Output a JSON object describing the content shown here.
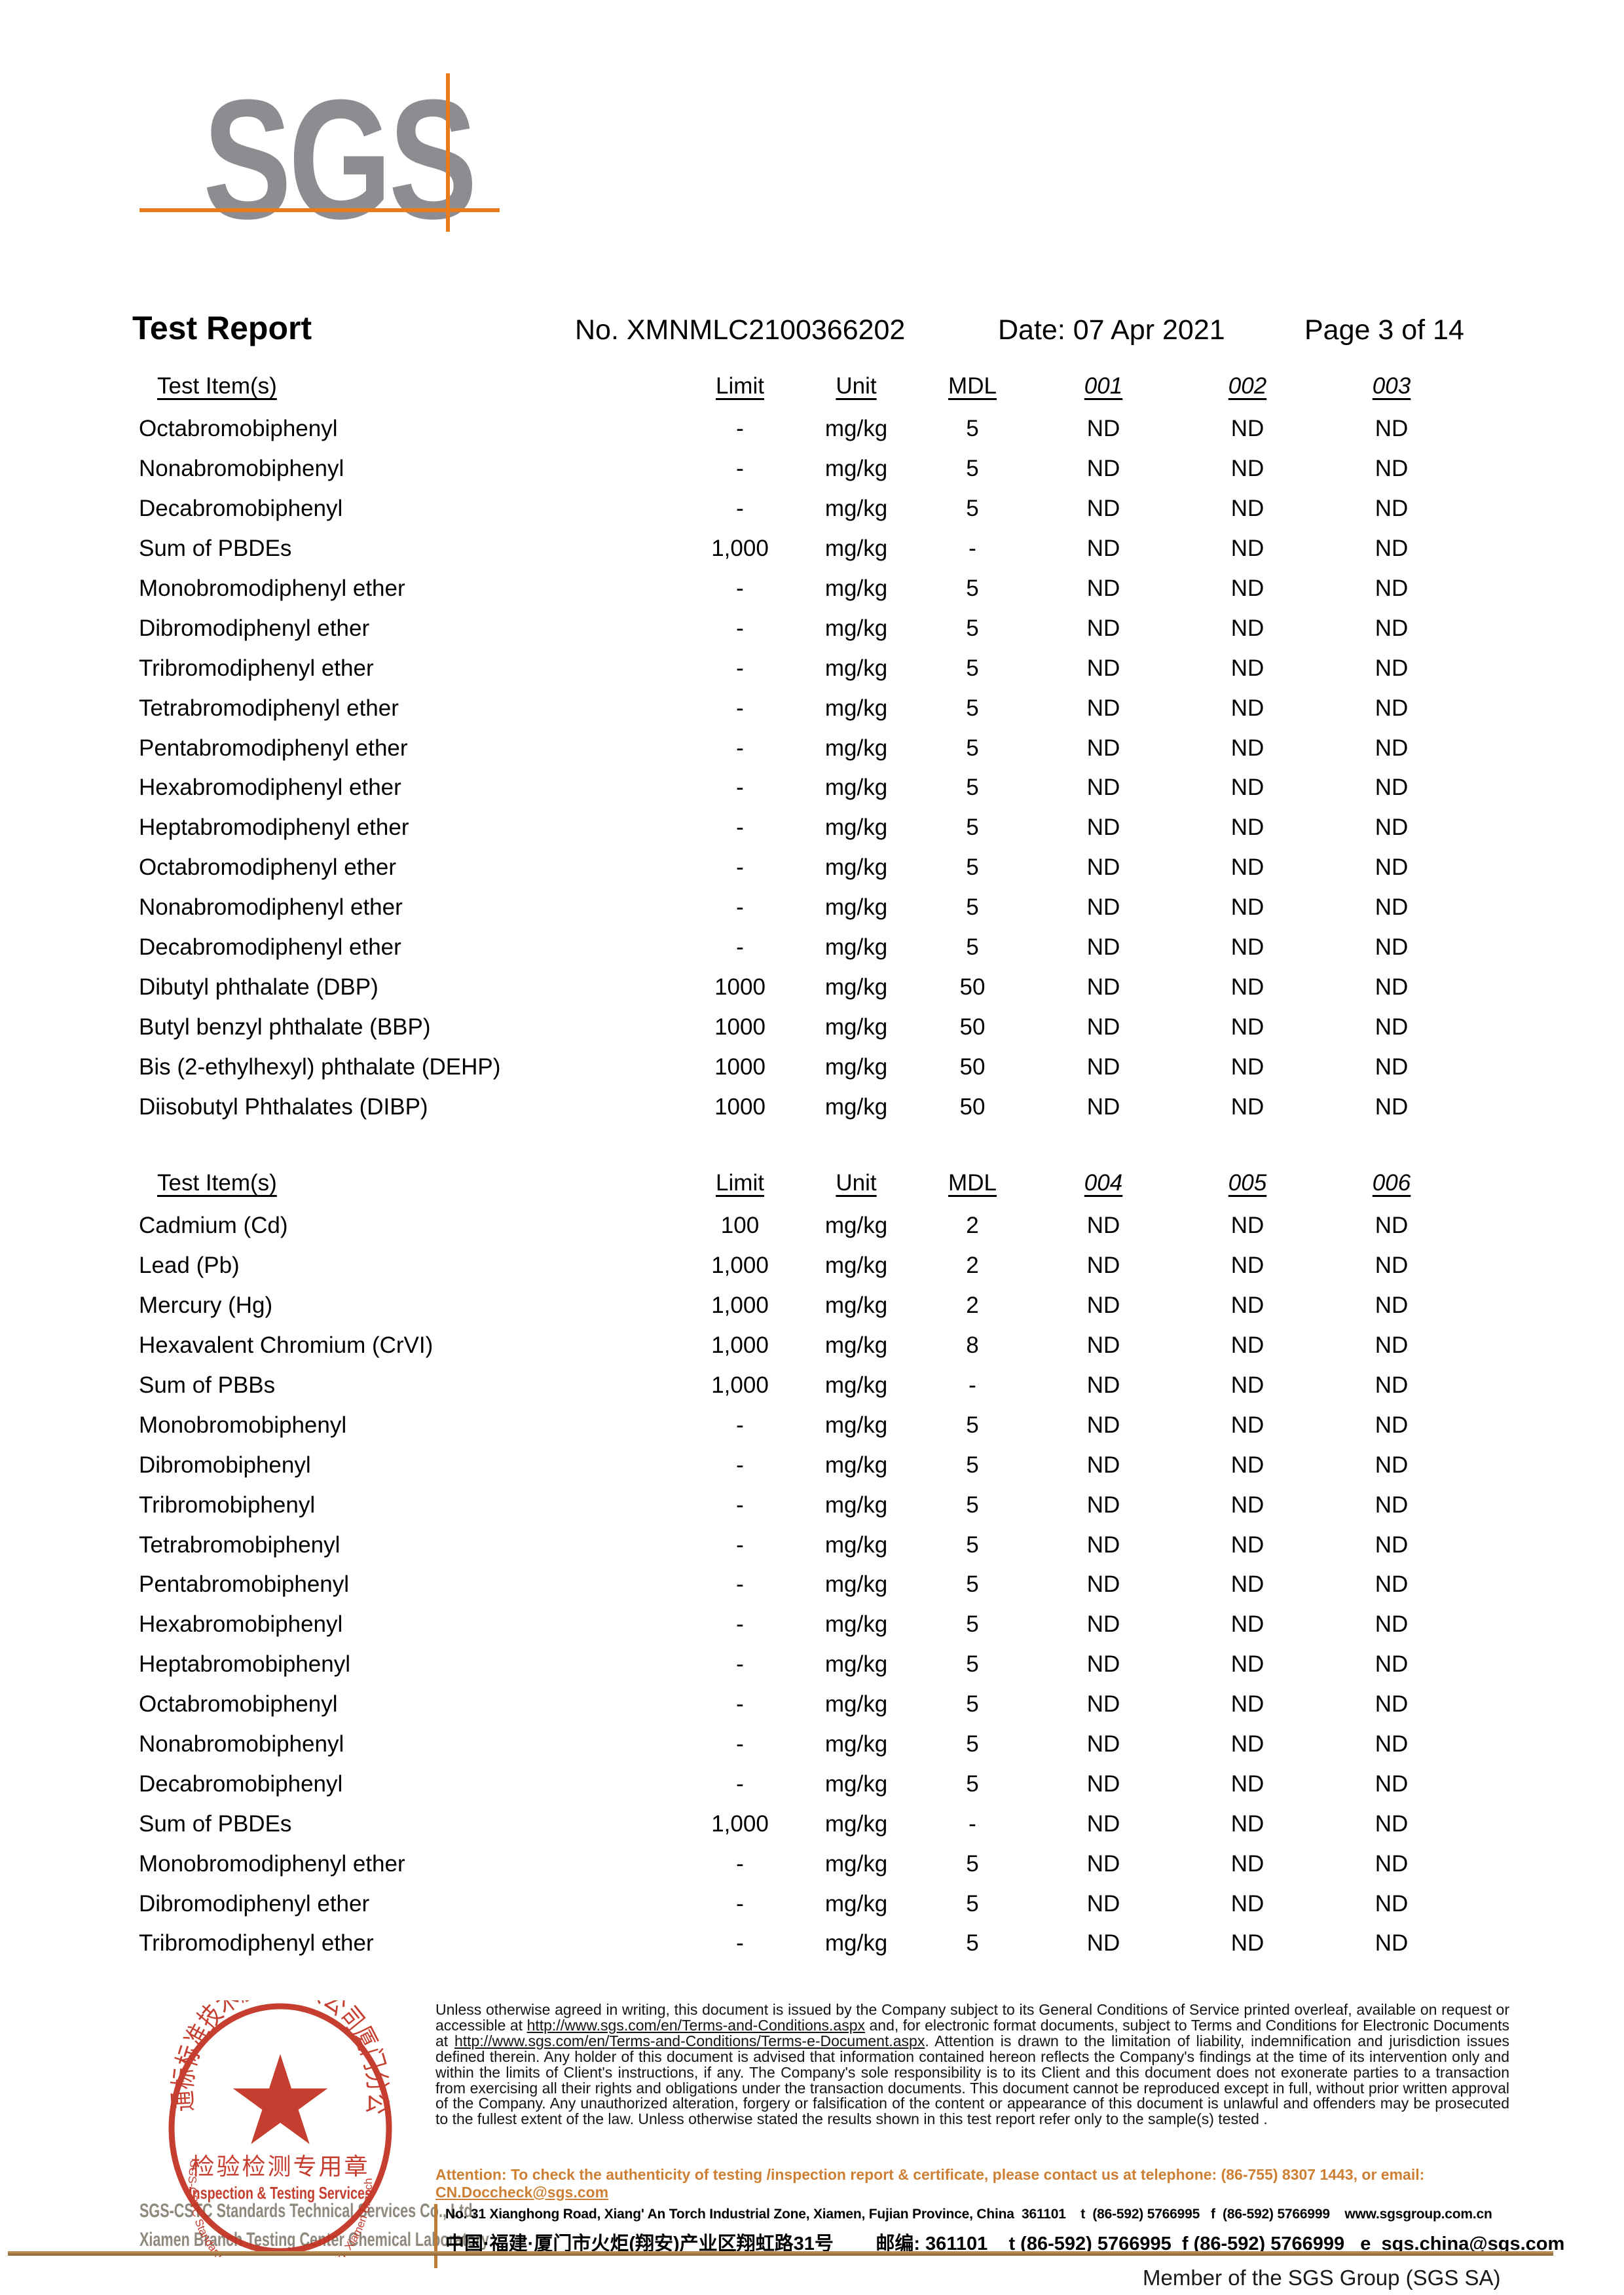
{
  "logo": {
    "text": "SGS",
    "accent_color": "#e87c1c",
    "gray_color": "#8b8d90"
  },
  "header": {
    "title": "Test Report",
    "report_no": "No. XMNMLC2100366202",
    "date": "Date: 07 Apr 2021",
    "page": "Page 3 of 14"
  },
  "tables": [
    {
      "columns": [
        "Test Item(s)",
        "Limit",
        "Unit",
        "MDL",
        "001",
        "002",
        "003"
      ],
      "rows": [
        [
          "Octabromobiphenyl",
          "-",
          "mg/kg",
          "5",
          "ND",
          "ND",
          "ND"
        ],
        [
          "Nonabromobiphenyl",
          "-",
          "mg/kg",
          "5",
          "ND",
          "ND",
          "ND"
        ],
        [
          "Decabromobiphenyl",
          "-",
          "mg/kg",
          "5",
          "ND",
          "ND",
          "ND"
        ],
        [
          "Sum of PBDEs",
          "1,000",
          "mg/kg",
          "-",
          "ND",
          "ND",
          "ND"
        ],
        [
          "Monobromodiphenyl ether",
          "-",
          "mg/kg",
          "5",
          "ND",
          "ND",
          "ND"
        ],
        [
          "Dibromodiphenyl ether",
          "-",
          "mg/kg",
          "5",
          "ND",
          "ND",
          "ND"
        ],
        [
          "Tribromodiphenyl ether",
          "-",
          "mg/kg",
          "5",
          "ND",
          "ND",
          "ND"
        ],
        [
          "Tetrabromodiphenyl ether",
          "-",
          "mg/kg",
          "5",
          "ND",
          "ND",
          "ND"
        ],
        [
          "Pentabromodiphenyl ether",
          "-",
          "mg/kg",
          "5",
          "ND",
          "ND",
          "ND"
        ],
        [
          "Hexabromodiphenyl ether",
          "-",
          "mg/kg",
          "5",
          "ND",
          "ND",
          "ND"
        ],
        [
          "Heptabromodiphenyl ether",
          "-",
          "mg/kg",
          "5",
          "ND",
          "ND",
          "ND"
        ],
        [
          "Octabromodiphenyl ether",
          "-",
          "mg/kg",
          "5",
          "ND",
          "ND",
          "ND"
        ],
        [
          "Nonabromodiphenyl ether",
          "-",
          "mg/kg",
          "5",
          "ND",
          "ND",
          "ND"
        ],
        [
          "Decabromodiphenyl ether",
          "-",
          "mg/kg",
          "5",
          "ND",
          "ND",
          "ND"
        ],
        [
          "Dibutyl phthalate (DBP)",
          "1000",
          "mg/kg",
          "50",
          "ND",
          "ND",
          "ND"
        ],
        [
          "Butyl benzyl phthalate (BBP)",
          "1000",
          "mg/kg",
          "50",
          "ND",
          "ND",
          "ND"
        ],
        [
          "Bis (2-ethylhexyl) phthalate (DEHP)",
          "1000",
          "mg/kg",
          "50",
          "ND",
          "ND",
          "ND"
        ],
        [
          "Diisobutyl Phthalates (DIBP)",
          "1000",
          "mg/kg",
          "50",
          "ND",
          "ND",
          "ND"
        ]
      ]
    },
    {
      "columns": [
        "Test Item(s)",
        "Limit",
        "Unit",
        "MDL",
        "004",
        "005",
        "006"
      ],
      "rows": [
        [
          "Cadmium (Cd)",
          "100",
          "mg/kg",
          "2",
          "ND",
          "ND",
          "ND"
        ],
        [
          "Lead (Pb)",
          "1,000",
          "mg/kg",
          "2",
          "ND",
          "ND",
          "ND"
        ],
        [
          "Mercury (Hg)",
          "1,000",
          "mg/kg",
          "2",
          "ND",
          "ND",
          "ND"
        ],
        [
          "Hexavalent Chromium (CrVI)",
          "1,000",
          "mg/kg",
          "8",
          "ND",
          "ND",
          "ND"
        ],
        [
          "Sum of PBBs",
          "1,000",
          "mg/kg",
          "-",
          "ND",
          "ND",
          "ND"
        ],
        [
          "Monobromobiphenyl",
          "-",
          "mg/kg",
          "5",
          "ND",
          "ND",
          "ND"
        ],
        [
          "Dibromobiphenyl",
          "-",
          "mg/kg",
          "5",
          "ND",
          "ND",
          "ND"
        ],
        [
          "Tribromobiphenyl",
          "-",
          "mg/kg",
          "5",
          "ND",
          "ND",
          "ND"
        ],
        [
          "Tetrabromobiphenyl",
          "-",
          "mg/kg",
          "5",
          "ND",
          "ND",
          "ND"
        ],
        [
          "Pentabromobiphenyl",
          "-",
          "mg/kg",
          "5",
          "ND",
          "ND",
          "ND"
        ],
        [
          "Hexabromobiphenyl",
          "-",
          "mg/kg",
          "5",
          "ND",
          "ND",
          "ND"
        ],
        [
          "Heptabromobiphenyl",
          "-",
          "mg/kg",
          "5",
          "ND",
          "ND",
          "ND"
        ],
        [
          "Octabromobiphenyl",
          "-",
          "mg/kg",
          "5",
          "ND",
          "ND",
          "ND"
        ],
        [
          "Nonabromobiphenyl",
          "-",
          "mg/kg",
          "5",
          "ND",
          "ND",
          "ND"
        ],
        [
          "Decabromobiphenyl",
          "-",
          "mg/kg",
          "5",
          "ND",
          "ND",
          "ND"
        ],
        [
          "Sum of PBDEs",
          "1,000",
          "mg/kg",
          "-",
          "ND",
          "ND",
          "ND"
        ],
        [
          "Monobromodiphenyl ether",
          "-",
          "mg/kg",
          "5",
          "ND",
          "ND",
          "ND"
        ],
        [
          "Dibromodiphenyl ether",
          "-",
          "mg/kg",
          "5",
          "ND",
          "ND",
          "ND"
        ],
        [
          "Tribromodiphenyl ether",
          "-",
          "mg/kg",
          "5",
          "ND",
          "ND",
          "ND"
        ]
      ]
    }
  ],
  "stamp": {
    "cn_arc": "通标标准技术服务有限公司厦门分公司",
    "en_arc": "SGS-CSTC Standards Technical Services Co., Ltd. Xiamen Branch",
    "center_cn": "检验检测专用章",
    "center_en": "Inspection & Testing Services",
    "star_icon": "red-star",
    "ring_color": "#c13020",
    "company_line1": "SGS-CSTC Standards Technical Services Co., Ltd.",
    "company_line2": "Xiamen Branch Testing Center Chemical Laboratory"
  },
  "footer": {
    "disclaimer_segments": [
      {
        "t": "Unless otherwise agreed in writing, this document is issued by the Company subject to its General Conditions of Service printed overleaf, available on request or accessible at ",
        "u": false
      },
      {
        "t": "http://www.sgs.com/en/Terms-and-Conditions.aspx",
        "u": true
      },
      {
        "t": " and, for electronic format documents, subject to Terms and Conditions for Electronic Documents at ",
        "u": false
      },
      {
        "t": "http://www.sgs.com/en/Terms-and-Conditions/Terms-e-Document.aspx",
        "u": true
      },
      {
        "t": ". Attention is drawn to the limitation of liability, indemnification and jurisdiction issues defined therein. Any holder of this document is advised that information contained hereon reflects the Company's findings at the time of its intervention only and within the limits of Client's instructions, if any. The Company's sole responsibility is to its Client and this document does not exonerate parties to a transaction from exercising all their rights and obligations under the transaction documents. This document cannot be reproduced except in full, without prior written approval of the Company. Any unauthorized alteration, forgery or falsification of the content or appearance of this document is unlawful and offenders may be prosecuted to the fullest extent of the law. Unless otherwise stated the results shown in this test report refer only to the sample(s) tested .",
        "u": false
      }
    ],
    "attention_segments": [
      {
        "t": "Attention: To check the authenticity of testing /inspection report & certificate, please contact us at telephone: (86-755) 8307 1443, or email: ",
        "u": false
      },
      {
        "t": "CN.Doccheck@sgs.com",
        "u": true
      }
    ],
    "address_en": "No. 31 Xianghong Road, Xiang' An Torch Industrial Zone, Xiamen, Fujian Province, China  361101    t  (86-592) 5766995   f  (86-592) 5766999    www.sgsgroup.com.cn",
    "address_cn": "中国·福建·厦门市火炬(翔安)产业区翔虹路31号        邮编: 361101    t (86-592) 5766995  f (86-592) 5766999   e  sgs.china@sgs.com",
    "member": "Member of the SGS Group (SGS SA)"
  }
}
